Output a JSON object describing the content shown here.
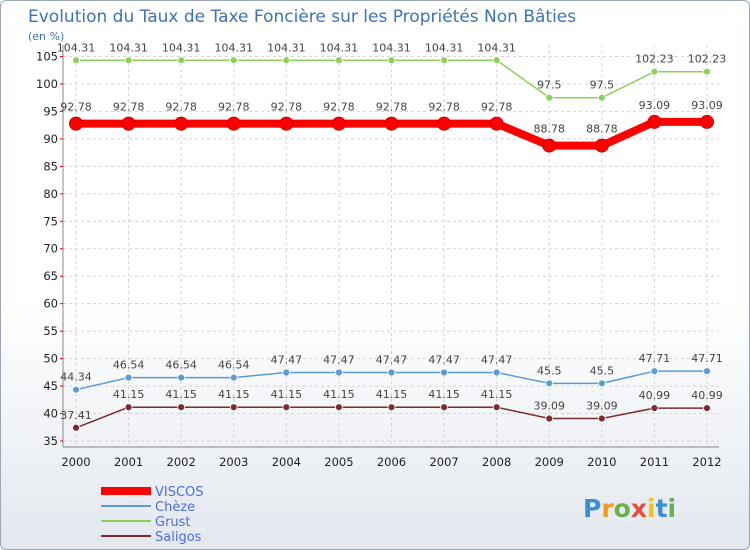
{
  "chart_data": {
    "type": "line",
    "title": "Evolution du Taux de Taxe Foncière sur les Propriétés Non Bâties",
    "ylabel": "(en %)",
    "xlabel": "",
    "ylim": [
      35,
      106
    ],
    "yticks": [
      35,
      40,
      45,
      50,
      55,
      60,
      65,
      70,
      75,
      80,
      85,
      90,
      95,
      100,
      105
    ],
    "categories": [
      "2000",
      "2001",
      "2002",
      "2003",
      "2004",
      "2005",
      "2006",
      "2007",
      "2008",
      "2009",
      "2010",
      "2011",
      "2012"
    ],
    "series": [
      {
        "name": "VISCOS",
        "color": "#ff0000",
        "values": [
          92.78,
          92.78,
          92.78,
          92.78,
          92.78,
          92.78,
          92.78,
          92.78,
          92.78,
          88.78,
          88.78,
          93.09,
          93.09
        ],
        "labels": [
          "92.78",
          "92.78",
          "92.78",
          "92.78",
          "92.78",
          "92.78",
          "92.78",
          "92.78",
          "92.78",
          "88.78",
          "88.78",
          "93.09",
          "93.09"
        ]
      },
      {
        "name": "Chèze",
        "color": "#5b9bd5",
        "values": [
          44.34,
          46.54,
          46.54,
          46.54,
          47.47,
          47.47,
          47.47,
          47.47,
          47.47,
          45.5,
          45.5,
          47.71,
          47.71
        ],
        "labels": [
          "44.34",
          "46.54",
          "46.54",
          "46.54",
          "47.47",
          "47.47",
          "47.47",
          "47.47",
          "47.47",
          "45.5",
          "45.5",
          "47.71",
          "47.71"
        ]
      },
      {
        "name": "Grust",
        "color": "#8fd05c",
        "values": [
          104.31,
          104.31,
          104.31,
          104.31,
          104.31,
          104.31,
          104.31,
          104.31,
          104.31,
          97.5,
          97.5,
          102.23,
          102.23
        ],
        "labels": [
          "104.31",
          "104.31",
          "104.31",
          "104.31",
          "104.31",
          "104.31",
          "104.31",
          "104.31",
          "104.31",
          "97.5",
          "97.5",
          "102.23",
          "102.23"
        ]
      },
      {
        "name": "Saligos",
        "color": "#7b2c2c",
        "values": [
          37.41,
          41.15,
          41.15,
          41.15,
          41.15,
          41.15,
          41.15,
          41.15,
          41.15,
          39.09,
          39.09,
          40.99,
          40.99
        ],
        "labels": [
          "37.41",
          "41.15",
          "41.15",
          "41.15",
          "41.15",
          "41.15",
          "41.15",
          "41.15",
          "41.15",
          "39.09",
          "39.09",
          "40.99",
          "40.99"
        ]
      }
    ],
    "legend_position": "bottom-left"
  },
  "logo": {
    "text": "Proxiti",
    "letters": [
      "P",
      "r",
      "o",
      "x",
      "i",
      "t",
      "i"
    ],
    "colors": [
      "#3a8fd8",
      "#f39c12",
      "#6ab04c",
      "#e74c3c",
      "#f1c40f",
      "#3a8fd8",
      "#6ab04c"
    ]
  }
}
